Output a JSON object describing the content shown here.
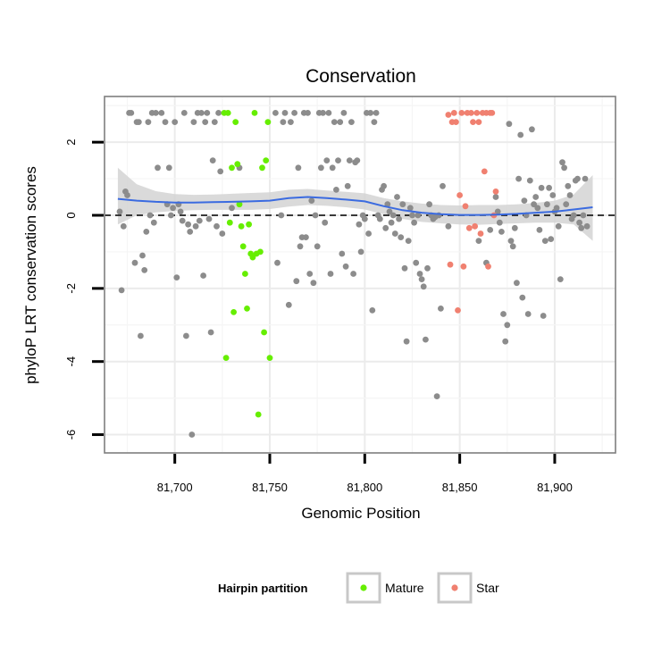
{
  "chart_data": {
    "type": "scatter",
    "title": "Conservation",
    "xlabel": "Genomic Position",
    "ylabel": "phyloP LRT conservation scores",
    "xlim": [
      81663,
      81932
    ],
    "ylim": [
      -6.5,
      3.25
    ],
    "x_ticks": [
      81700,
      81750,
      81800,
      81850,
      81900
    ],
    "x_tick_labels": [
      "81,700",
      "81,750",
      "81,800",
      "81,850",
      "81,900"
    ],
    "y_ticks": [
      -6,
      -4,
      -2,
      0,
      2
    ],
    "y_tick_labels": [
      "-6",
      "-4",
      "-2",
      "0",
      "2"
    ],
    "grid": true,
    "reference_line": {
      "y": 0,
      "style": "dashed"
    },
    "legend": {
      "title": "Hairpin partition",
      "position": "bottom",
      "entries": [
        {
          "label": "Mature",
          "color": "#66ee00"
        },
        {
          "label": "Star",
          "color": "#f08070"
        }
      ]
    },
    "colors": {
      "other": "#8c8c8c",
      "mature": "#66ee00",
      "star": "#f08070",
      "smooth": "#3b6be0",
      "band": "#d3d3d3"
    },
    "series": [
      {
        "group": "other",
        "points": [
          [
            81671,
            0.1
          ],
          [
            81672,
            -2.05
          ],
          [
            81673,
            -0.3
          ],
          [
            81674,
            0.65
          ],
          [
            81675,
            0.55
          ],
          [
            81676,
            2.8
          ],
          [
            81677,
            2.8
          ],
          [
            81679,
            -1.3
          ],
          [
            81680,
            2.55
          ],
          [
            81681,
            2.55
          ],
          [
            81682,
            -3.3
          ],
          [
            81683,
            -1.1
          ],
          [
            81684,
            -1.5
          ],
          [
            81685,
            -0.45
          ],
          [
            81686,
            2.55
          ],
          [
            81687,
            0.0
          ],
          [
            81688,
            2.8
          ],
          [
            81689,
            -0.2
          ],
          [
            81690,
            2.8
          ],
          [
            81691,
            1.3
          ],
          [
            81693,
            2.8
          ],
          [
            81695,
            2.55
          ],
          [
            81696,
            0.3
          ],
          [
            81697,
            1.3
          ],
          [
            81698,
            0.0
          ],
          [
            81699,
            0.2
          ],
          [
            81700,
            2.55
          ],
          [
            81701,
            -1.7
          ],
          [
            81702,
            0.3
          ],
          [
            81703,
            0.1
          ],
          [
            81704,
            -0.15
          ],
          [
            81705,
            2.8
          ],
          [
            81706,
            -3.3
          ],
          [
            81707,
            -0.25
          ],
          [
            81708,
            -0.45
          ],
          [
            81709,
            -6.0
          ],
          [
            81710,
            2.55
          ],
          [
            81711,
            -0.3
          ],
          [
            81712,
            2.8
          ],
          [
            81713,
            -0.15
          ],
          [
            81714,
            2.8
          ],
          [
            81715,
            -1.65
          ],
          [
            81716,
            2.55
          ],
          [
            81717,
            2.8
          ],
          [
            81718,
            -0.1
          ],
          [
            81719,
            -3.2
          ],
          [
            81720,
            1.5
          ],
          [
            81721,
            2.55
          ],
          [
            81722,
            -0.3
          ],
          [
            81723,
            2.8
          ],
          [
            81724,
            1.2
          ],
          [
            81725,
            -0.5
          ],
          [
            81730,
            0.2
          ],
          [
            81734,
            1.3
          ],
          [
            81753,
            2.8
          ],
          [
            81754,
            -1.3
          ],
          [
            81756,
            0.0
          ],
          [
            81757,
            2.55
          ],
          [
            81758,
            2.8
          ],
          [
            81760,
            -2.45
          ],
          [
            81761,
            2.55
          ],
          [
            81763,
            2.8
          ],
          [
            81764,
            -1.8
          ],
          [
            81765,
            1.3
          ],
          [
            81766,
            -0.85
          ],
          [
            81767,
            -0.6
          ],
          [
            81768,
            2.8
          ],
          [
            81769,
            -0.6
          ],
          [
            81770,
            2.8
          ],
          [
            81771,
            -1.6
          ],
          [
            81772,
            0.4
          ],
          [
            81773,
            -1.85
          ],
          [
            81774,
            0.0
          ],
          [
            81775,
            -0.85
          ],
          [
            81776,
            2.8
          ],
          [
            81777,
            1.3
          ],
          [
            81778,
            2.8
          ],
          [
            81779,
            -0.2
          ],
          [
            81780,
            1.5
          ],
          [
            81781,
            2.8
          ],
          [
            81782,
            -1.6
          ],
          [
            81783,
            1.3
          ],
          [
            81784,
            2.55
          ],
          [
            81785,
            0.7
          ],
          [
            81786,
            1.5
          ],
          [
            81787,
            2.55
          ],
          [
            81788,
            -1.05
          ],
          [
            81789,
            2.8
          ],
          [
            81790,
            -1.4
          ],
          [
            81791,
            0.8
          ],
          [
            81792,
            1.5
          ],
          [
            81793,
            2.55
          ],
          [
            81794,
            -1.6
          ],
          [
            81795,
            1.45
          ],
          [
            81796,
            1.5
          ],
          [
            81797,
            -0.25
          ],
          [
            81798,
            -1.0
          ],
          [
            81799,
            0.0
          ],
          [
            81800,
            -0.1
          ],
          [
            81801,
            2.8
          ],
          [
            81802,
            -0.5
          ],
          [
            81803,
            2.8
          ],
          [
            81804,
            -2.6
          ],
          [
            81805,
            2.55
          ],
          [
            81806,
            2.8
          ],
          [
            81807,
            0.0
          ],
          [
            81808,
            -0.1
          ],
          [
            81809,
            0.7
          ],
          [
            81810,
            0.8
          ],
          [
            81811,
            -0.35
          ],
          [
            81812,
            0.3
          ],
          [
            81813,
            0.1
          ],
          [
            81814,
            -0.2
          ],
          [
            81815,
            0.0
          ],
          [
            81816,
            -0.5
          ],
          [
            81817,
            0.5
          ],
          [
            81818,
            -0.1
          ],
          [
            81819,
            -0.6
          ],
          [
            81820,
            0.3
          ],
          [
            81821,
            -1.45
          ],
          [
            81822,
            -3.45
          ],
          [
            81823,
            -0.7
          ],
          [
            81824,
            0.2
          ],
          [
            81825,
            0.0
          ],
          [
            81826,
            -0.2
          ],
          [
            81827,
            -1.3
          ],
          [
            81828,
            0.0
          ],
          [
            81829,
            -1.6
          ],
          [
            81830,
            -1.75
          ],
          [
            81831,
            -1.95
          ],
          [
            81832,
            -3.4
          ],
          [
            81833,
            -1.45
          ],
          [
            81834,
            0.3
          ],
          [
            81835,
            0.0
          ],
          [
            81836,
            -0.1
          ],
          [
            81837,
            -0.05
          ],
          [
            81838,
            -4.95
          ],
          [
            81839,
            0.0
          ],
          [
            81840,
            -2.55
          ],
          [
            81841,
            0.8
          ],
          [
            81844,
            -0.3
          ],
          [
            81860,
            -0.7
          ],
          [
            81864,
            -1.3
          ],
          [
            81866,
            -0.4
          ],
          [
            81869,
            0.5
          ],
          [
            81870,
            0.1
          ],
          [
            81871,
            -0.2
          ],
          [
            81872,
            -0.45
          ],
          [
            81873,
            -2.7
          ],
          [
            81874,
            -3.45
          ],
          [
            81875,
            -3.0
          ],
          [
            81876,
            2.5
          ],
          [
            81877,
            -0.7
          ],
          [
            81878,
            -0.85
          ],
          [
            81879,
            -0.35
          ],
          [
            81880,
            -1.85
          ],
          [
            81881,
            1.0
          ],
          [
            81882,
            2.2
          ],
          [
            81883,
            -2.25
          ],
          [
            81884,
            0.4
          ],
          [
            81885,
            0.0
          ],
          [
            81886,
            -2.7
          ],
          [
            81887,
            0.95
          ],
          [
            81888,
            2.35
          ],
          [
            81889,
            0.3
          ],
          [
            81890,
            0.5
          ],
          [
            81891,
            0.2
          ],
          [
            81892,
            -0.4
          ],
          [
            81893,
            0.75
          ],
          [
            81894,
            -2.75
          ],
          [
            81895,
            -0.7
          ],
          [
            81896,
            0.3
          ],
          [
            81897,
            0.75
          ],
          [
            81898,
            -0.65
          ],
          [
            81899,
            0.55
          ],
          [
            81900,
            0.1
          ],
          [
            81901,
            0.2
          ],
          [
            81902,
            -0.3
          ],
          [
            81903,
            -1.75
          ],
          [
            81904,
            1.45
          ],
          [
            81905,
            1.3
          ],
          [
            81906,
            0.3
          ],
          [
            81907,
            0.8
          ],
          [
            81908,
            0.55
          ],
          [
            81909,
            -0.1
          ],
          [
            81910,
            0.0
          ],
          [
            81911,
            0.95
          ],
          [
            81912,
            1.0
          ],
          [
            81913,
            -0.2
          ],
          [
            81914,
            -0.35
          ],
          [
            81915,
            0.0
          ],
          [
            81916,
            1.0
          ],
          [
            81917,
            -0.3
          ]
        ]
      },
      {
        "group": "mature",
        "name": "Mature",
        "points": [
          [
            81726,
            2.8
          ],
          [
            81727,
            -3.9
          ],
          [
            81728,
            2.8
          ],
          [
            81729,
            -0.2
          ],
          [
            81730,
            1.3
          ],
          [
            81731,
            -2.65
          ],
          [
            81732,
            2.55
          ],
          [
            81733,
            1.4
          ],
          [
            81734,
            0.3
          ],
          [
            81735,
            -0.3
          ],
          [
            81736,
            -0.85
          ],
          [
            81737,
            -1.6
          ],
          [
            81738,
            -2.55
          ],
          [
            81739,
            -0.25
          ],
          [
            81740,
            -1.05
          ],
          [
            81741,
            -1.15
          ],
          [
            81742,
            2.8
          ],
          [
            81743,
            -1.05
          ],
          [
            81744,
            -5.45
          ],
          [
            81745,
            -1.0
          ],
          [
            81746,
            1.3
          ],
          [
            81747,
            -3.2
          ],
          [
            81748,
            1.5
          ],
          [
            81749,
            2.55
          ],
          [
            81750,
            -3.9
          ]
        ]
      },
      {
        "group": "star",
        "name": "Star",
        "points": [
          [
            81844,
            2.75
          ],
          [
            81845,
            -1.35
          ],
          [
            81846,
            2.55
          ],
          [
            81847,
            2.8
          ],
          [
            81848,
            2.55
          ],
          [
            81849,
            -2.6
          ],
          [
            81850,
            0.55
          ],
          [
            81851,
            2.8
          ],
          [
            81852,
            -1.4
          ],
          [
            81853,
            0.25
          ],
          [
            81854,
            2.8
          ],
          [
            81855,
            -0.35
          ],
          [
            81856,
            2.8
          ],
          [
            81857,
            2.55
          ],
          [
            81858,
            -0.3
          ],
          [
            81859,
            2.8
          ],
          [
            81860,
            2.55
          ],
          [
            81861,
            -0.5
          ],
          [
            81862,
            2.8
          ],
          [
            81863,
            1.2
          ],
          [
            81864,
            2.8
          ],
          [
            81865,
            -1.4
          ],
          [
            81866,
            2.8
          ],
          [
            81867,
            2.8
          ],
          [
            81868,
            0.0
          ],
          [
            81869,
            0.65
          ]
        ]
      }
    ],
    "smooth_line": {
      "x": [
        81670,
        81680,
        81690,
        81700,
        81710,
        81720,
        81730,
        81740,
        81750,
        81760,
        81770,
        81780,
        81790,
        81800,
        81810,
        81820,
        81830,
        81840,
        81850,
        81860,
        81870,
        81880,
        81890,
        81900,
        81910,
        81920
      ],
      "y": [
        0.45,
        0.4,
        0.37,
        0.35,
        0.35,
        0.36,
        0.37,
        0.38,
        0.4,
        0.47,
        0.5,
        0.47,
        0.43,
        0.38,
        0.25,
        0.14,
        0.07,
        0.03,
        0.01,
        0.01,
        0.02,
        0.04,
        0.07,
        0.1,
        0.16,
        0.22
      ],
      "lower": [
        -0.25,
        0.0,
        0.08,
        0.12,
        0.14,
        0.15,
        0.15,
        0.15,
        0.17,
        0.24,
        0.28,
        0.26,
        0.22,
        0.16,
        0.03,
        -0.1,
        -0.18,
        -0.22,
        -0.25,
        -0.26,
        -0.24,
        -0.22,
        -0.2,
        -0.2,
        -0.25,
        -0.7
      ],
      "upper": [
        1.3,
        0.85,
        0.66,
        0.58,
        0.56,
        0.57,
        0.59,
        0.61,
        0.63,
        0.7,
        0.72,
        0.68,
        0.64,
        0.6,
        0.47,
        0.38,
        0.32,
        0.28,
        0.27,
        0.28,
        0.28,
        0.3,
        0.34,
        0.4,
        0.57,
        1.1
      ]
    }
  }
}
